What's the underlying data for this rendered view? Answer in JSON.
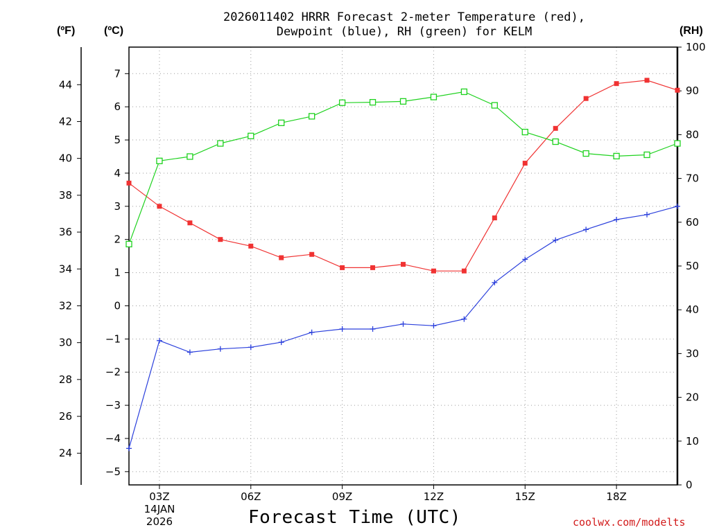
{
  "title": {
    "line1": "2026011402 HRRR Forecast 2-meter Temperature (red),",
    "line2": "Dewpoint (blue), RH (green) for KELM"
  },
  "units": {
    "f": "(ºF)",
    "c": "(ºC)",
    "rh": "(RH)"
  },
  "xlabel": "Forecast Time (UTC)",
  "credit": "coolwx.com/modelts",
  "date": {
    "day": "14JAN",
    "year": "2026"
  },
  "colors": {
    "temp": "#f03232",
    "dew": "#2a3fdc",
    "rh": "#1ed21e",
    "grid": "#9a9a9a"
  },
  "chart_data": {
    "type": "line",
    "x_hours": [
      2,
      3,
      4,
      5,
      6,
      7,
      8,
      9,
      10,
      11,
      12,
      13,
      14,
      15,
      16,
      17,
      18,
      19,
      20
    ],
    "xlim": [
      2,
      20
    ],
    "x_ticks": [
      {
        "hour": 3,
        "label": "03Z"
      },
      {
        "hour": 6,
        "label": "06Z"
      },
      {
        "hour": 9,
        "label": "09Z"
      },
      {
        "hour": 12,
        "label": "12Z"
      },
      {
        "hour": 15,
        "label": "15Z"
      },
      {
        "hour": 18,
        "label": "18Z"
      }
    ],
    "c_axis": {
      "ylim": [
        -5.4,
        7.8
      ],
      "ticks": [
        -5,
        -4,
        -3,
        -2,
        -1,
        0,
        1,
        2,
        3,
        4,
        5,
        6,
        7
      ]
    },
    "f_axis": {
      "ylim": [
        22.28,
        46.04
      ],
      "ticks": [
        24,
        26,
        28,
        30,
        32,
        34,
        36,
        38,
        40,
        42,
        44
      ]
    },
    "rh_axis": {
      "ylim": [
        0,
        100
      ],
      "ticks": [
        0,
        10,
        20,
        30,
        40,
        50,
        60,
        70,
        80,
        90,
        100
      ]
    },
    "series": [
      {
        "name": "2-meter Temperature",
        "axis": "c",
        "marker": "filled-square",
        "values": [
          3.7,
          3.0,
          2.5,
          2.0,
          1.8,
          1.45,
          1.55,
          1.15,
          1.15,
          1.25,
          1.05,
          1.05,
          2.65,
          4.3,
          5.35,
          6.25,
          6.7,
          6.8,
          6.5
        ]
      },
      {
        "name": "Dewpoint",
        "axis": "c",
        "marker": "plus",
        "values": [
          -4.3,
          -1.05,
          -1.4,
          -1.3,
          -1.25,
          -1.1,
          -0.8,
          -0.7,
          -0.7,
          -0.55,
          -0.6,
          -0.4,
          0.7,
          1.4,
          1.98,
          2.3,
          2.6,
          2.75,
          3.0
        ]
      },
      {
        "name": "RH",
        "axis": "rh",
        "marker": "open-square",
        "values": [
          55,
          74,
          75,
          78,
          79.7,
          82.7,
          84.2,
          87.3,
          87.4,
          87.6,
          88.6,
          89.8,
          86.7,
          80.6,
          78.4,
          75.7,
          75.1,
          75.4,
          78
        ]
      }
    ]
  }
}
